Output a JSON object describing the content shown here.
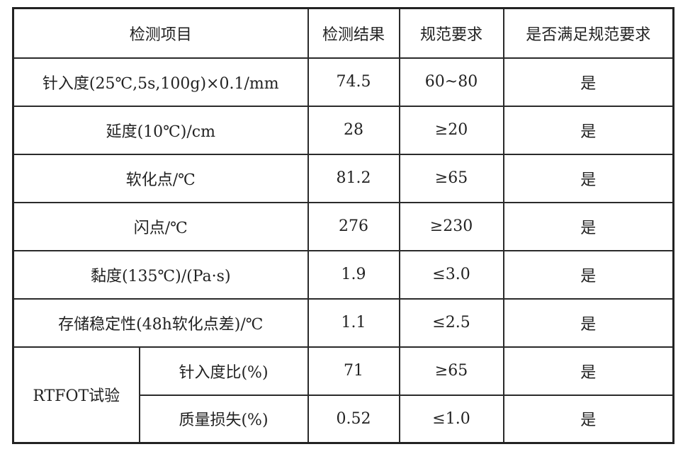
{
  "header": [
    "检测项目",
    "检测结果",
    "规范要求",
    "是否满足规范要求"
  ],
  "rows": [
    {
      "item": "针入度(25℃,5s,100g)×0.1/mm",
      "result": "74.5",
      "spec": "60~80",
      "ok": "是"
    },
    {
      "item": "延度(10℃)/cm",
      "result": "28",
      "spec": "≥20",
      "ok": "是"
    },
    {
      "item": "软化点/℃",
      "result": "81.2",
      "spec": "≥65",
      "ok": "是"
    },
    {
      "item": "闪点/℃",
      "result": "276",
      "spec": "≥230",
      "ok": "是"
    },
    {
      "item": "黏度(135℃)/(Pa·s)",
      "result": "1.9",
      "spec": "≤3.0",
      "ok": "是"
    },
    {
      "item": "存储稳定性(48h软化点差)/℃",
      "result": "1.1",
      "spec": "≤2.5",
      "ok": "是"
    }
  ],
  "rtfot": {
    "group": "RTFOT试验",
    "rows": [
      {
        "item": "针入度比(%)",
        "result": "71",
        "spec": "≥65",
        "ok": "是"
      },
      {
        "item": "质量损失(%)",
        "result": "0.52",
        "spec": "≤1.0",
        "ok": "是"
      }
    ]
  }
}
